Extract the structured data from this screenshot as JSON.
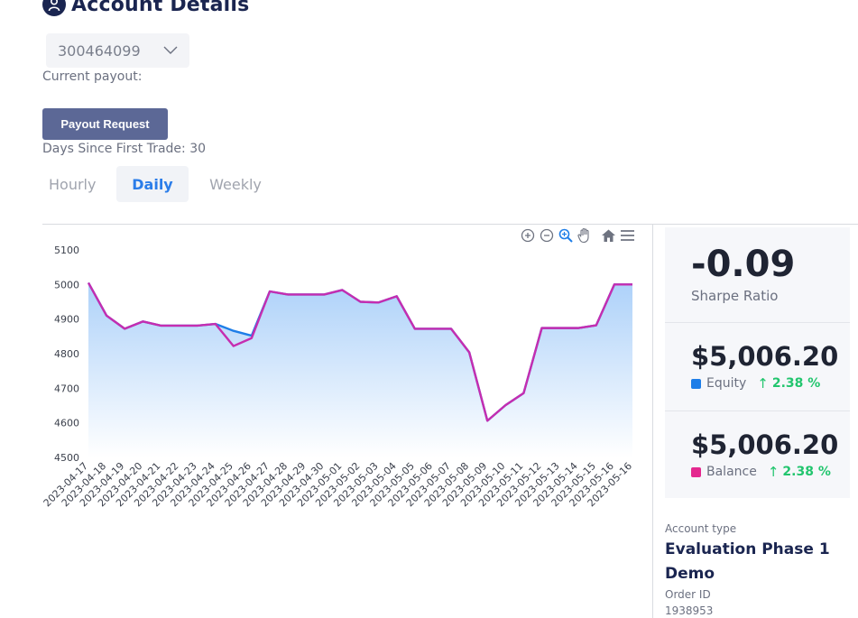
{
  "page": {
    "title": "Account Details",
    "account_number": "300464099",
    "current_payout_label": "Current payout:",
    "payout_button": "Payout Request",
    "days_since_first_trade": "Days Since First Trade: 30"
  },
  "tabs": [
    {
      "label": "Hourly",
      "active": false
    },
    {
      "label": "Daily",
      "active": true
    },
    {
      "label": "Weekly",
      "active": false
    }
  ],
  "toolbar": [
    "zoom-in-icon",
    "zoom-out-icon",
    "selection-zoom-icon",
    "pan-hand-icon",
    "home-reset-icon",
    "menu-icon"
  ],
  "stats": {
    "sharpe": {
      "value": "-0.09",
      "label": "Sharpe Ratio"
    },
    "equity": {
      "value": "$5,006.20",
      "label": "Equity",
      "change": "2.38 %",
      "color": "#1e7ee8"
    },
    "balance": {
      "value": "$5,006.20",
      "label": "Balance",
      "change": "2.38 %",
      "color": "#e4288f"
    }
  },
  "account_info": {
    "type_label": "Account type",
    "type_value": "Evaluation Phase 1 Demo",
    "order_label": "Order ID",
    "order_value": "1938953"
  },
  "colors": {
    "accent": "#2b7de9",
    "button": "#5c6896",
    "positive": "#22c56e",
    "area_fill": "#b3d4fa"
  },
  "chart_data": {
    "type": "area",
    "x": [
      "2023-04-17",
      "2023-04-18",
      "2023-04-19",
      "2023-04-20",
      "2023-04-21",
      "2023-04-22",
      "2023-04-23",
      "2023-04-24",
      "2023-04-25",
      "2023-04-26",
      "2023-04-27",
      "2023-04-28",
      "2023-04-29",
      "2023-04-30",
      "2023-05-01",
      "2023-05-02",
      "2023-05-03",
      "2023-05-04",
      "2023-05-05",
      "2023-05-06",
      "2023-05-07",
      "2023-05-08",
      "2023-05-09",
      "2023-05-10",
      "2023-05-11",
      "2023-05-12",
      "2023-05-13",
      "2023-05-14",
      "2023-05-15",
      "2023-05-16",
      "2023-05-16"
    ],
    "series": [
      {
        "name": "Equity",
        "color": "#1e7ee8",
        "values": [
          5005,
          4910,
          4872,
          4893,
          4881,
          4881,
          4881,
          4886,
          4866,
          4852,
          4980,
          4971,
          4971,
          4971,
          4984,
          4950,
          4948,
          4966,
          4872,
          4872,
          4872,
          4804,
          4606,
          4651,
          4686,
          4874,
          4874,
          4874,
          4882,
          5000,
          5000
        ]
      },
      {
        "name": "Balance",
        "color": "#c62db0",
        "values": [
          5005,
          4910,
          4872,
          4893,
          4881,
          4881,
          4881,
          4886,
          4822,
          4845,
          4980,
          4971,
          4971,
          4971,
          4984,
          4950,
          4948,
          4966,
          4872,
          4872,
          4872,
          4804,
          4606,
          4651,
          4686,
          4874,
          4874,
          4874,
          4882,
          5000,
          5000
        ]
      }
    ],
    "yticks": [
      4500,
      4600,
      4700,
      4800,
      4900,
      5000,
      5100
    ],
    "ylim": [
      4500,
      5100
    ],
    "grid": false,
    "legend": "none"
  }
}
